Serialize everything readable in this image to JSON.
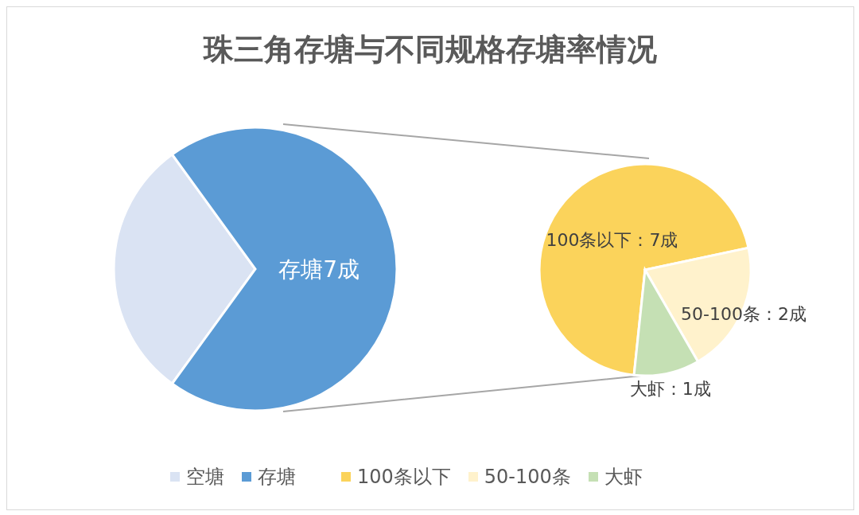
{
  "chart_data": [
    {
      "type": "pie",
      "title": "珠三角存塘与不同规格存塘率情况",
      "categories": [
        "空塘",
        "存塘"
      ],
      "values": [
        3,
        7
      ],
      "colors": [
        "#dae3f3",
        "#5b9bd5"
      ],
      "value_labels": [
        null,
        "存塘7成"
      ],
      "legend": "bottom"
    },
    {
      "type": "pie",
      "categories": [
        "100条以下",
        "50-100条",
        "大虾"
      ],
      "values": [
        7,
        2,
        1
      ],
      "colors": [
        "#fbd35b",
        "#fff2cc",
        "#c5e0b4"
      ],
      "value_labels": [
        "100条以下：7成",
        "50-100条：2成",
        "大虾：1成"
      ],
      "legend": "bottom"
    }
  ]
}
